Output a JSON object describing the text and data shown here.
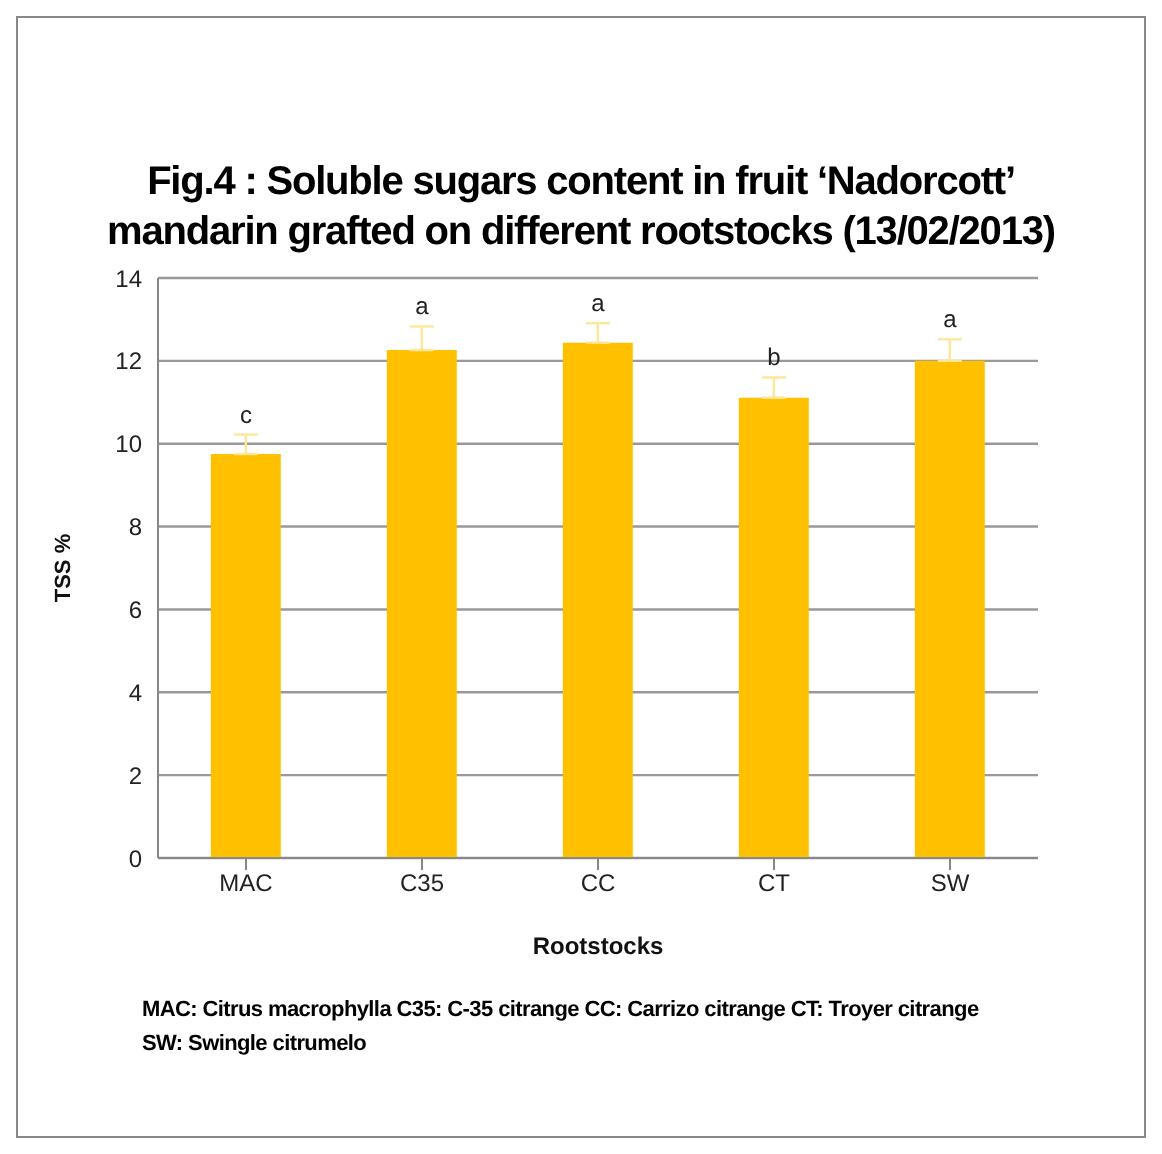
{
  "chart_data": {
    "type": "bar",
    "title": "Fig.4 : Soluble sugars content in fruit ‘Nadorcott’ mandarin grafted on different rootstocks (13/02/2013)",
    "xlabel": "Rootstocks",
    "ylabel": "TSS %",
    "categories": [
      "MAC",
      "C35",
      "CC",
      "CT",
      "SW"
    ],
    "values": [
      9.75,
      12.26,
      12.44,
      11.11,
      12.0
    ],
    "errors": [
      [
        9.75,
        10.22
      ],
      [
        12.26,
        12.83
      ],
      [
        12.44,
        12.91
      ],
      [
        11.11,
        11.6
      ],
      [
        12.0,
        12.52
      ]
    ],
    "color": "#ffc000",
    "ylim": [
      0,
      14
    ],
    "yticks": [
      0,
      2,
      4,
      6,
      8,
      10,
      12,
      14
    ],
    "grid": "y",
    "legend": false,
    "annotations": [
      {
        "text": "c",
        "x": "MAC",
        "y": 10.22
      },
      {
        "text": "a",
        "x": "C35",
        "y": 12.83
      },
      {
        "text": "a",
        "x": "CC",
        "y": 12.91
      },
      {
        "text": "b",
        "x": "CT",
        "y": 11.6
      },
      {
        "text": "a",
        "x": "SW",
        "y": 12.52
      },
      "MAC: Citrus macrophylla  C35: C-35 citrange   CC: Carrizo citrange  CT: Troyer citrange\nSW: Swingle citrumelo"
    ]
  }
}
